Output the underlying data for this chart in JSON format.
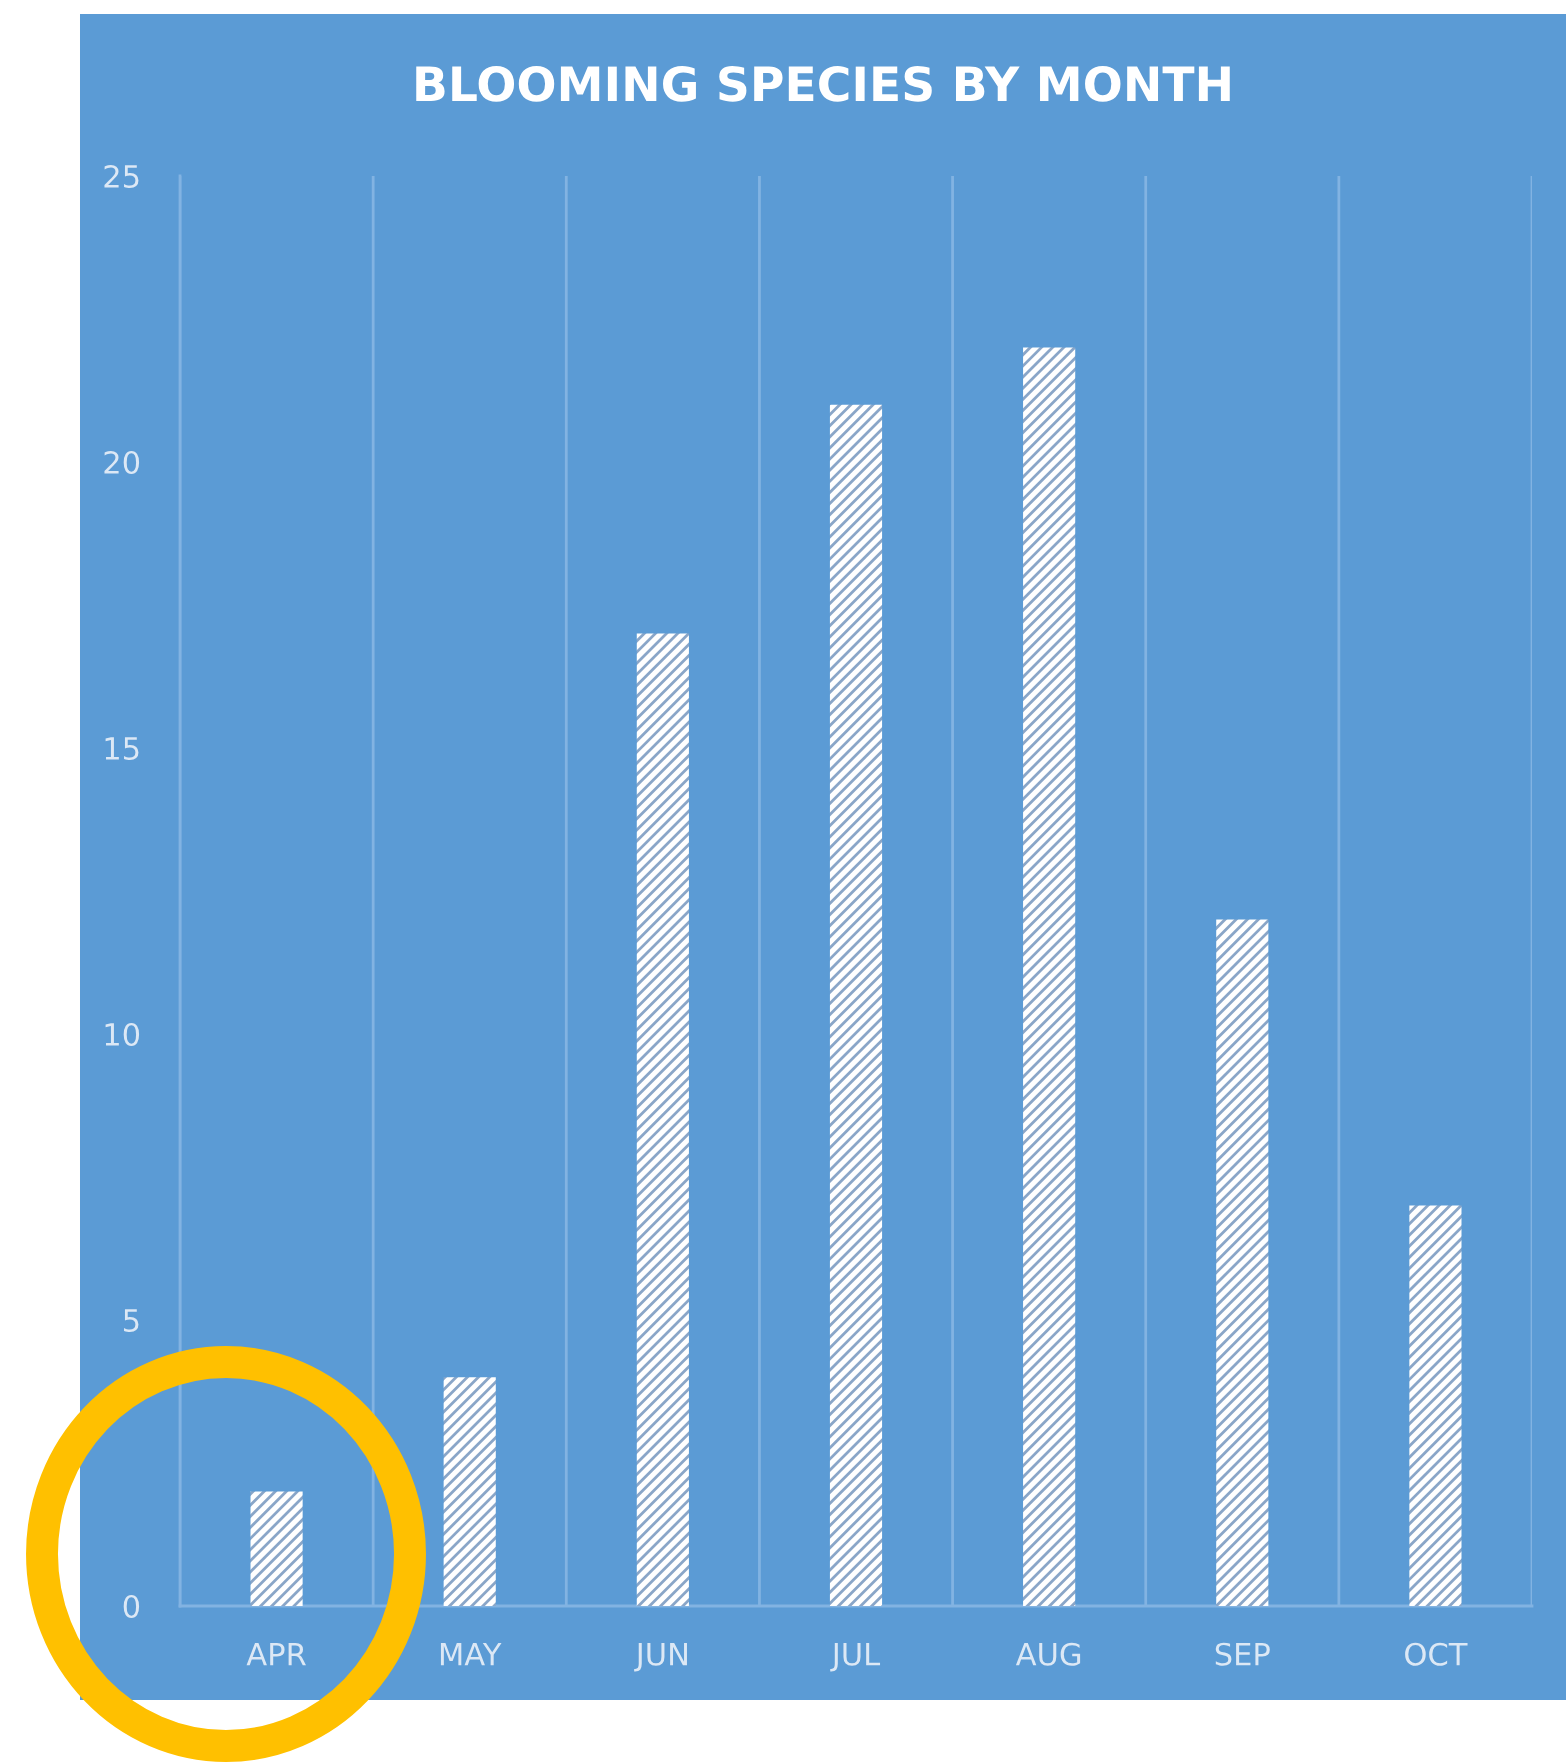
{
  "chart_data": {
    "type": "bar",
    "title": "BLOOMING SPECIES BY MONTH",
    "categories": [
      "APR",
      "MAY",
      "JUN",
      "JUL",
      "AUG",
      "SEP",
      "OCT"
    ],
    "values": [
      2,
      4,
      17,
      21,
      22,
      12,
      7
    ],
    "color": "#ffffff",
    "ylim": [
      0,
      25
    ],
    "yticks": [
      0,
      5,
      10,
      15,
      20,
      25
    ],
    "grid": "x"
  }
}
